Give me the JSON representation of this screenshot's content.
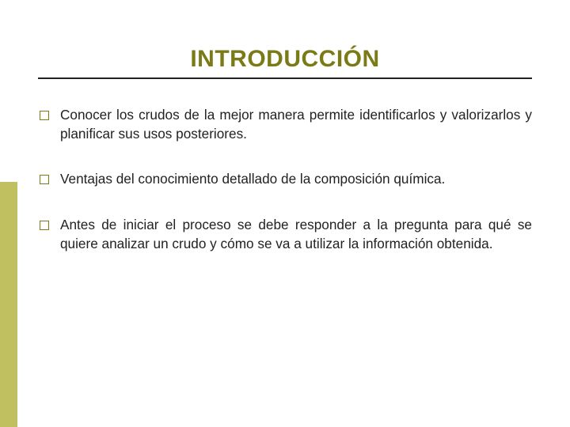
{
  "colors": {
    "accent": "#7a7a16",
    "sidebar": "#c0c060",
    "rule": "#222222",
    "text": "#222222",
    "background": "#ffffff"
  },
  "typography": {
    "title_fontsize_pt": 23,
    "body_fontsize_pt": 13,
    "font_family": "Verdana"
  },
  "title": "INTRODUCCIÓN",
  "bullets": [
    "Conocer los crudos de la mejor manera permite identificarlos y valorizarlos y planificar sus usos posteriores.",
    "Ventajas del conocimiento detallado de la composición química.",
    "Antes de iniciar el proceso se debe responder a la pregunta para qué se quiere analizar un crudo y cómo se va a utilizar la información obtenida."
  ]
}
